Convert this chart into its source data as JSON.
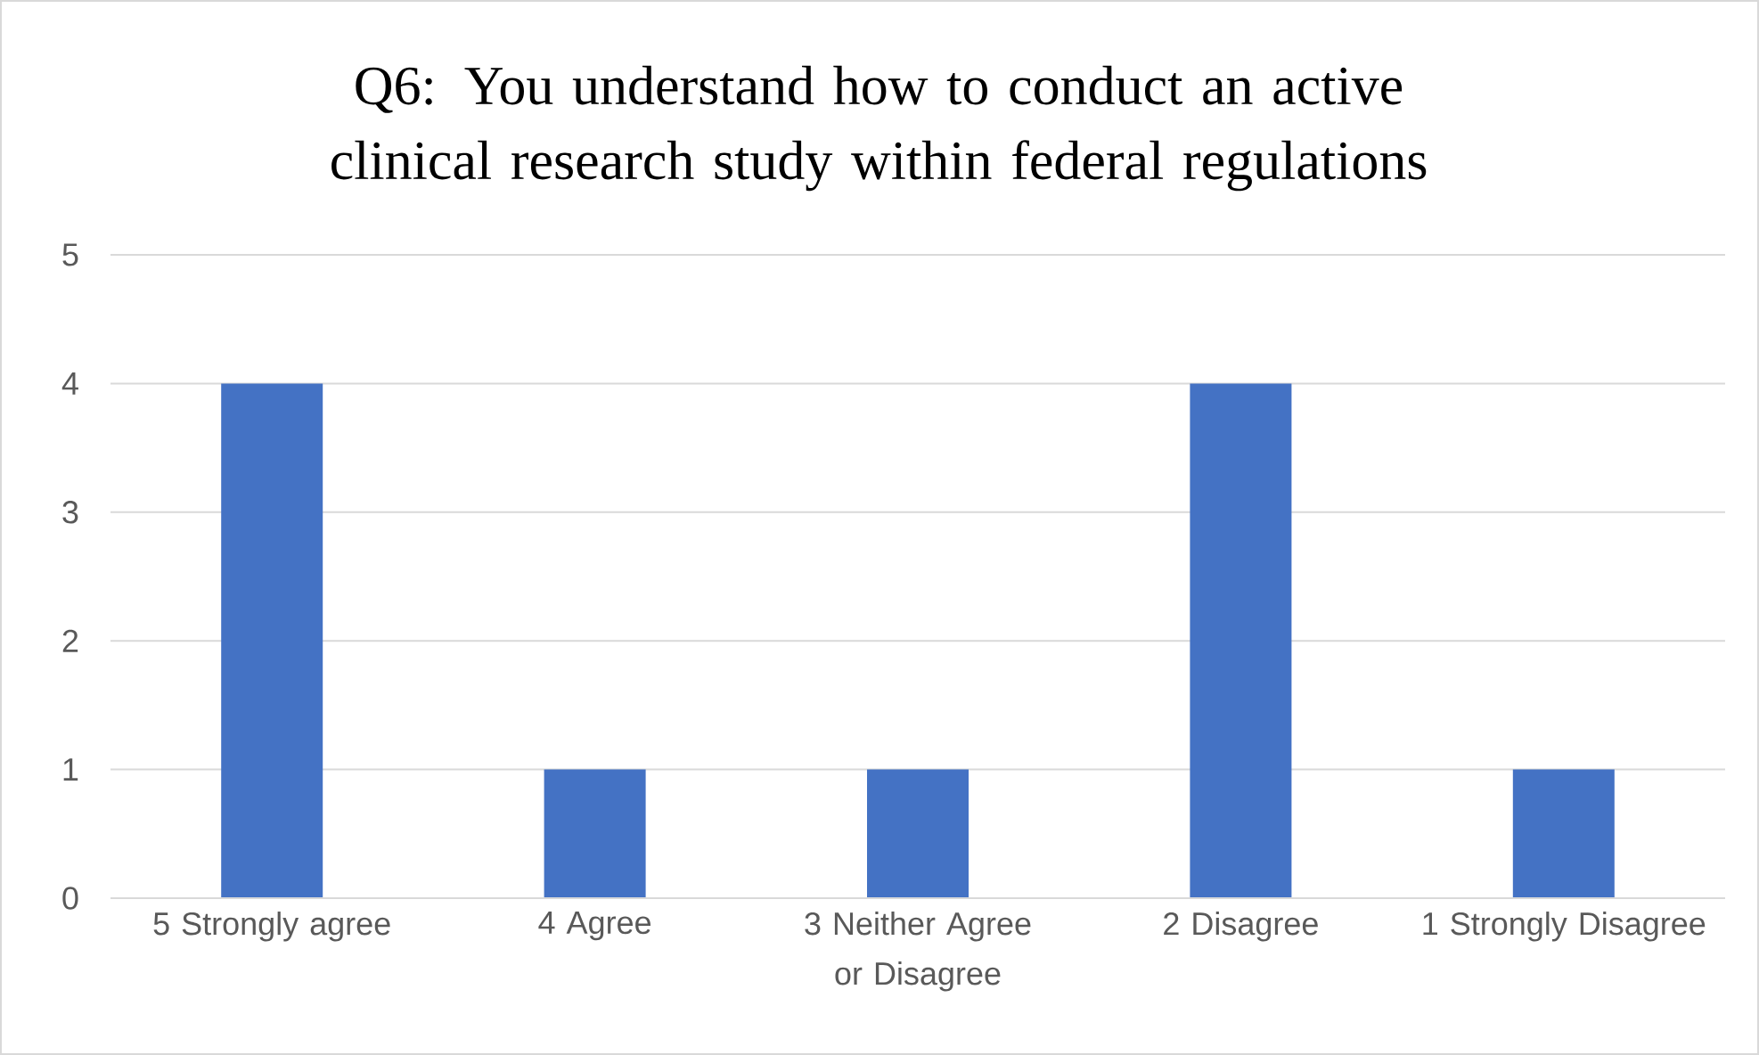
{
  "chart_data": {
    "type": "bar",
    "title": "Q6: You understand how to conduct an active clinical research study within federal regulations",
    "categories": [
      "5 Strongly agree",
      "4 Agree",
      "3 Neither Agree or Disagree",
      "2 Disagree",
      "1 Strongly Disagree"
    ],
    "values": [
      4,
      1,
      1,
      4,
      1
    ],
    "color": "#4472c4",
    "ylim": [
      0,
      5
    ],
    "yticks": [
      0,
      1,
      2,
      3,
      4,
      5
    ],
    "grid": "y"
  }
}
